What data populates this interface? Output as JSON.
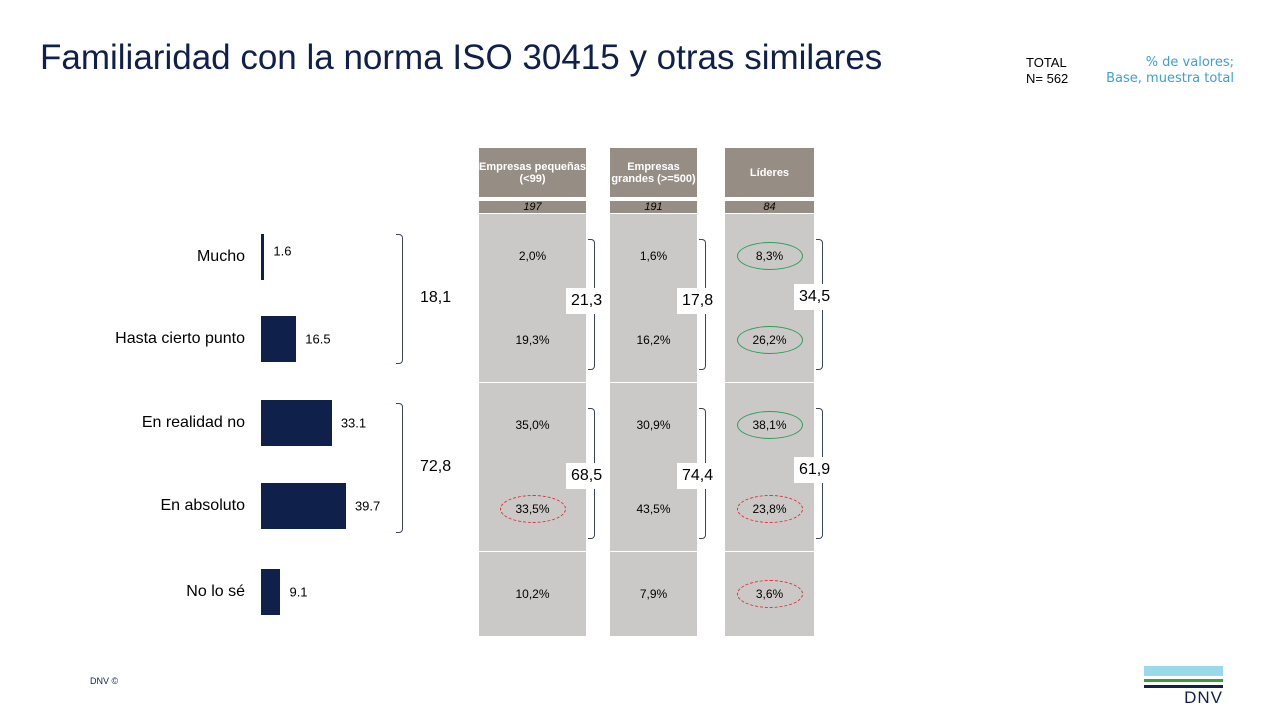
{
  "title": "Familiaridad con la norma ISO 30415 y otras similares",
  "total": {
    "label": "TOTAL",
    "n": "N= 562"
  },
  "note": {
    "line1": "% de valores;",
    "line2": "Base, muestra total"
  },
  "footer": {
    "copyright": "DNV ©",
    "logo": "DNV"
  },
  "colors": {
    "bar": "#0f204b",
    "header": "#968d85",
    "cell": "#cbc9c7",
    "highlight_high": "#2f9e5a",
    "highlight_low": "#e0303a"
  },
  "chart_data": {
    "type": "bar",
    "orientation": "horizontal",
    "categories": [
      "Mucho",
      "Hasta cierto punto",
      "En realidad no",
      "En absoluto",
      "No lo sé"
    ],
    "values": [
      1.6,
      16.5,
      33.1,
      39.7,
      9.1
    ],
    "value_labels": [
      "1.6",
      "16.5",
      "33.1",
      "39.7",
      "9.1"
    ],
    "groups": [
      {
        "label": "18,1",
        "rows": [
          0,
          1
        ]
      },
      {
        "label": "72,8",
        "rows": [
          2,
          3
        ]
      }
    ],
    "table": {
      "columns": [
        {
          "header": "Empresas pequeñas (<99)",
          "n": "197",
          "values": [
            "2,0%",
            "19,3%",
            "35,0%",
            "33,5%",
            "10,2%"
          ],
          "groups": [
            "21,3",
            "68,5"
          ],
          "highlight": [
            "",
            "",
            "",
            "low",
            ""
          ]
        },
        {
          "header": "Empresas grandes (>=500)",
          "n": "191",
          "values": [
            "1,6%",
            "16,2%",
            "30,9%",
            "43,5%",
            "7,9%"
          ],
          "groups": [
            "17,8",
            "74,4"
          ],
          "highlight": [
            "",
            "",
            "",
            "",
            ""
          ]
        },
        {
          "header": "Líderes",
          "n": "84",
          "values": [
            "8,3%",
            "26,2%",
            "38,1%",
            "23,8%",
            "3,6%"
          ],
          "groups": [
            "34,5",
            "61,9"
          ],
          "highlight": [
            "high",
            "high",
            "high",
            "low",
            "low"
          ]
        }
      ]
    }
  }
}
